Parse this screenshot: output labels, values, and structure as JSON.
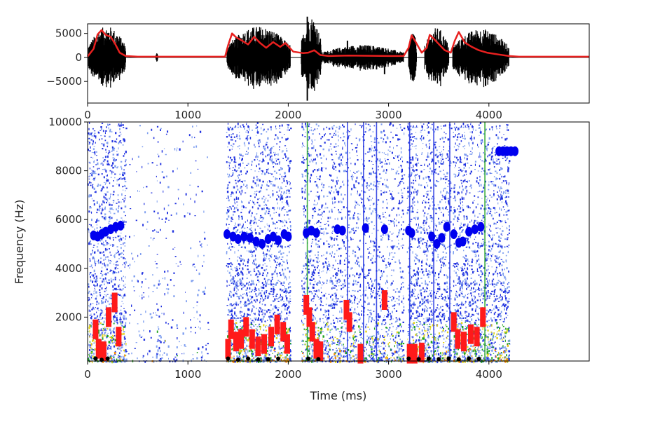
{
  "chart_data": [
    {
      "type": "line",
      "xlim": [
        0,
        5000
      ],
      "ylim": [
        -9500,
        7000
      ],
      "x_ticks": [
        0,
        1000,
        2000,
        3000,
        4000
      ],
      "y_ticks": [
        5000,
        0,
        -5000
      ],
      "y_tick_labels": [
        "5000",
        "0",
        "−5000"
      ],
      "xlabel": "",
      "ylabel": "",
      "grid": false,
      "series": [
        {
          "kind": "waveform",
          "color": "#000000",
          "segments": [
            {
              "start": 10,
              "end": 380,
              "amplitude": 6500
            },
            {
              "start": 680,
              "end": 700,
              "amplitude": 1000
            },
            {
              "start": 1390,
              "end": 2020,
              "amplitude": 6500
            },
            {
              "start": 2130,
              "end": 2330,
              "amplitude": 8500
            },
            {
              "start": 2330,
              "end": 3150,
              "amplitude": 2600
            },
            {
              "start": 3200,
              "end": 3280,
              "amplitude": 5800
            },
            {
              "start": 3360,
              "end": 3600,
              "amplitude": 6200
            },
            {
              "start": 3640,
              "end": 4200,
              "amplitude": 6000
            }
          ]
        },
        {
          "kind": "envelope",
          "color": "#e8201f",
          "points": [
            [
              0,
              200
            ],
            [
              60,
              1800
            ],
            [
              100,
              4800
            ],
            [
              140,
              5700
            ],
            [
              180,
              4700
            ],
            [
              230,
              4300
            ],
            [
              270,
              3000
            ],
            [
              320,
              1000
            ],
            [
              380,
              300
            ],
            [
              500,
              150
            ],
            [
              1000,
              150
            ],
            [
              1370,
              150
            ],
            [
              1400,
              2500
            ],
            [
              1440,
              5000
            ],
            [
              1480,
              4200
            ],
            [
              1540,
              3500
            ],
            [
              1600,
              2700
            ],
            [
              1660,
              4300
            ],
            [
              1720,
              3000
            ],
            [
              1780,
              2000
            ],
            [
              1850,
              3200
            ],
            [
              1920,
              2200
            ],
            [
              1970,
              3000
            ],
            [
              2050,
              1200
            ],
            [
              2150,
              900
            ],
            [
              2200,
              1000
            ],
            [
              2260,
              1500
            ],
            [
              2320,
              500
            ],
            [
              2400,
              300
            ],
            [
              2600,
              400
            ],
            [
              3000,
              300
            ],
            [
              3150,
              300
            ],
            [
              3200,
              2000
            ],
            [
              3230,
              4600
            ],
            [
              3270,
              3200
            ],
            [
              3330,
              1000
            ],
            [
              3380,
              2000
            ],
            [
              3410,
              4700
            ],
            [
              3450,
              3900
            ],
            [
              3500,
              2800
            ],
            [
              3560,
              1500
            ],
            [
              3620,
              1000
            ],
            [
              3660,
              3500
            ],
            [
              3700,
              5300
            ],
            [
              3760,
              3100
            ],
            [
              3830,
              2200
            ],
            [
              3900,
              1500
            ],
            [
              3980,
              1000
            ],
            [
              4100,
              600
            ],
            [
              4200,
              300
            ],
            [
              4300,
              150
            ],
            [
              5000,
              150
            ]
          ]
        }
      ]
    },
    {
      "type": "heatmap",
      "xlim": [
        0,
        5000
      ],
      "ylim": [
        200,
        10000
      ],
      "x_ticks": [
        0,
        1000,
        2000,
        3000,
        4000
      ],
      "y_ticks": [
        2000,
        4000,
        6000,
        8000,
        10000
      ],
      "xlabel": "Time (ms)",
      "ylabel": "Frequency (Hz)",
      "grid": false,
      "colors": {
        "noise": "#2233e0",
        "noise_light": "#7f9ff0",
        "energy_mid": "#1fa31f",
        "energy_high": "#e3d21b",
        "energy_peak": "#ff8c00",
        "formant_f0": "#000000",
        "formant_low": "#ff1a1a",
        "formant_high": "#0000ee"
      },
      "energy_regions": [
        {
          "start": 0,
          "end": 380,
          "level": 1.0
        },
        {
          "start": 680,
          "end": 720,
          "level": 0.25
        },
        {
          "start": 400,
          "end": 1200,
          "level": 0.12
        },
        {
          "start": 1380,
          "end": 2020,
          "level": 1.0
        },
        {
          "start": 2130,
          "end": 2330,
          "level": 0.95
        },
        {
          "start": 2330,
          "end": 3150,
          "level": 0.7
        },
        {
          "start": 3180,
          "end": 3620,
          "level": 0.95
        },
        {
          "start": 3640,
          "end": 4200,
          "level": 1.0
        }
      ],
      "vertical_lines": [
        {
          "x": 2190,
          "color": "#1fa31f"
        },
        {
          "x": 2590,
          "color": "#2233e0"
        },
        {
          "x": 2750,
          "color": "#2233e0"
        },
        {
          "x": 2880,
          "color": "#2233e0"
        },
        {
          "x": 3210,
          "color": "#2233e0"
        },
        {
          "x": 3450,
          "color": "#2233e0"
        },
        {
          "x": 3610,
          "color": "#2233e0"
        },
        {
          "x": 3960,
          "color": "#1fa31f"
        }
      ],
      "formant_high": [
        [
          60,
          5350
        ],
        [
          100,
          5300
        ],
        [
          140,
          5400
        ],
        [
          180,
          5500
        ],
        [
          230,
          5600
        ],
        [
          280,
          5700
        ],
        [
          330,
          5750
        ],
        [
          1390,
          5400
        ],
        [
          1450,
          5300
        ],
        [
          1500,
          5200
        ],
        [
          1560,
          5300
        ],
        [
          1620,
          5250
        ],
        [
          1680,
          5100
        ],
        [
          1740,
          5000
        ],
        [
          1800,
          5200
        ],
        [
          1850,
          5300
        ],
        [
          1900,
          5150
        ],
        [
          1960,
          5400
        ],
        [
          2000,
          5300
        ],
        [
          2180,
          5450
        ],
        [
          2230,
          5550
        ],
        [
          2280,
          5450
        ],
        [
          2490,
          5600
        ],
        [
          2540,
          5550
        ],
        [
          2770,
          5650
        ],
        [
          2960,
          5600
        ],
        [
          3200,
          5550
        ],
        [
          3230,
          5450
        ],
        [
          3430,
          5300
        ],
        [
          3480,
          5000
        ],
        [
          3530,
          5250
        ],
        [
          3580,
          5700
        ],
        [
          3650,
          5400
        ],
        [
          3700,
          5050
        ],
        [
          3740,
          5100
        ],
        [
          3800,
          5500
        ],
        [
          3860,
          5600
        ],
        [
          3920,
          5700
        ],
        [
          4100,
          8800
        ],
        [
          4140,
          8800
        ],
        [
          4180,
          8800
        ],
        [
          4220,
          8800
        ],
        [
          4260,
          8800
        ]
      ],
      "formant_low": [
        [
          80,
          1500
        ],
        [
          110,
          700
        ],
        [
          160,
          600
        ],
        [
          210,
          2000
        ],
        [
          270,
          2600
        ],
        [
          310,
          1200
        ],
        [
          1400,
          700
        ],
        [
          1430,
          1500
        ],
        [
          1480,
          1000
        ],
        [
          1530,
          1100
        ],
        [
          1580,
          1600
        ],
        [
          1640,
          1100
        ],
        [
          1700,
          800
        ],
        [
          1760,
          900
        ],
        [
          1830,
          1200
        ],
        [
          1890,
          1700
        ],
        [
          1950,
          1400
        ],
        [
          1990,
          900
        ],
        [
          2180,
          2500
        ],
        [
          2210,
          2000
        ],
        [
          2240,
          1400
        ],
        [
          2280,
          700
        ],
        [
          2320,
          600
        ],
        [
          2580,
          2300
        ],
        [
          2610,
          1800
        ],
        [
          2720,
          500
        ],
        [
          2960,
          2700
        ],
        [
          3210,
          500
        ],
        [
          3260,
          500
        ],
        [
          3330,
          550
        ],
        [
          3650,
          1800
        ],
        [
          3690,
          1100
        ],
        [
          3750,
          1000
        ],
        [
          3820,
          1300
        ],
        [
          3880,
          1200
        ],
        [
          3940,
          2000
        ]
      ],
      "formant_f0": [
        [
          80,
          300
        ],
        [
          140,
          250
        ],
        [
          200,
          300
        ],
        [
          1400,
          300
        ],
        [
          1500,
          250
        ],
        [
          1600,
          300
        ],
        [
          1700,
          260
        ],
        [
          1800,
          280
        ],
        [
          1900,
          300
        ],
        [
          2200,
          300
        ],
        [
          2300,
          280
        ],
        [
          3200,
          300
        ],
        [
          3300,
          280
        ],
        [
          3400,
          300
        ],
        [
          3500,
          280
        ],
        [
          3600,
          300
        ],
        [
          3700,
          270
        ],
        [
          3800,
          300
        ],
        [
          3900,
          290
        ]
      ]
    }
  ]
}
